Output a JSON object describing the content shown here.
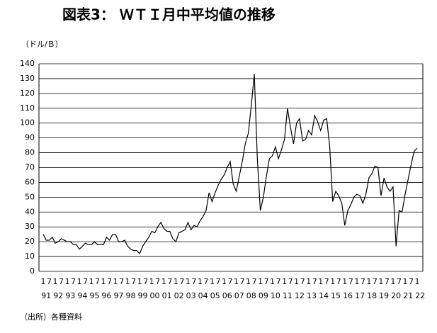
{
  "chart_data": {
    "type": "line",
    "title": "図表3： ＷＴＩ月中平均値の推移",
    "y_label": "（ドル/Ｂ）",
    "source": "（出所）各種資料",
    "x": [
      "91/1",
      "91/4",
      "91/7",
      "91/10",
      "92/1",
      "92/4",
      "92/7",
      "92/10",
      "93/1",
      "93/4",
      "93/7",
      "93/10",
      "94/1",
      "94/4",
      "94/7",
      "94/10",
      "95/1",
      "95/4",
      "95/7",
      "95/10",
      "96/1",
      "96/4",
      "96/7",
      "96/10",
      "97/1",
      "97/4",
      "97/7",
      "97/10",
      "98/1",
      "98/4",
      "98/7",
      "98/10",
      "99/1",
      "99/4",
      "99/7",
      "99/10",
      "00/1",
      "00/4",
      "00/7",
      "00/10",
      "01/1",
      "01/4",
      "01/7",
      "01/10",
      "02/1",
      "02/4",
      "02/7",
      "02/10",
      "03/1",
      "03/4",
      "03/7",
      "03/10",
      "04/1",
      "04/4",
      "04/7",
      "04/10",
      "05/1",
      "05/4",
      "05/7",
      "05/10",
      "06/1",
      "06/4",
      "06/7",
      "06/10",
      "07/1",
      "07/4",
      "07/7",
      "07/10",
      "08/1",
      "08/4",
      "08/7",
      "08/10",
      "09/1",
      "09/4",
      "09/7",
      "09/10",
      "10/1",
      "10/4",
      "10/7",
      "10/10",
      "11/1",
      "11/4",
      "11/7",
      "11/10",
      "12/1",
      "12/4",
      "12/7",
      "12/10",
      "13/1",
      "13/4",
      "13/7",
      "13/10",
      "14/1",
      "14/4",
      "14/7",
      "14/10",
      "15/1",
      "15/4",
      "15/7",
      "15/10",
      "16/1",
      "16/4",
      "16/7",
      "16/10",
      "17/1",
      "17/4",
      "17/7",
      "17/10",
      "18/1",
      "18/4",
      "18/7",
      "18/10",
      "19/1",
      "19/4",
      "19/7",
      "19/10",
      "20/1",
      "20/4",
      "20/7",
      "20/10",
      "21/1",
      "21/4",
      "21/7",
      "21/10",
      "22/1"
    ],
    "series": [
      {
        "color": "#000000",
        "values": [
          25,
          21,
          21,
          23,
          19,
          20,
          22,
          21,
          20,
          20,
          18,
          18,
          15,
          17,
          19,
          18,
          18,
          20,
          18,
          18,
          18,
          23,
          21,
          25,
          25,
          20,
          20,
          21,
          17,
          15,
          14,
          14,
          12,
          17,
          20,
          23,
          27,
          26,
          30,
          33,
          29,
          27,
          27,
          22,
          20,
          26,
          27,
          28,
          33,
          28,
          31,
          30,
          34,
          37,
          41,
          53,
          47,
          53,
          58,
          62,
          65,
          70,
          74,
          59,
          54,
          64,
          74,
          86,
          93,
          112,
          133,
          76,
          41,
          50,
          64,
          76,
          78,
          84,
          76,
          82,
          89,
          110,
          97,
          86,
          100,
          103,
          88,
          89,
          95,
          92,
          105,
          101,
          95,
          102,
          103,
          84,
          47,
          54,
          51,
          46,
          31,
          41,
          45,
          50,
          52,
          51,
          46,
          52,
          63,
          66,
          71,
          70,
          51,
          63,
          57,
          54,
          57,
          17,
          41,
          40,
          52,
          62,
          72,
          81,
          83
        ]
      }
    ],
    "ylim": [
      0,
      140
    ],
    "yticks": [
      0,
      10,
      20,
      30,
      40,
      50,
      60,
      70,
      80,
      90,
      100,
      110,
      120,
      130,
      140
    ],
    "xticks": [
      {
        "value": "91/1",
        "label": "1"
      },
      {
        "value": "91/7",
        "label": "7"
      },
      {
        "value": "92/1",
        "label": "1"
      },
      {
        "value": "92/7",
        "label": "7"
      },
      {
        "value": "93/1",
        "label": "1"
      },
      {
        "value": "93/7",
        "label": "7"
      },
      {
        "value": "94/1",
        "label": "1"
      },
      {
        "value": "94/7",
        "label": "7"
      },
      {
        "value": "95/1",
        "label": "1"
      },
      {
        "value": "95/7",
        "label": "7"
      },
      {
        "value": "96/1",
        "label": "1"
      },
      {
        "value": "96/7",
        "label": "7"
      },
      {
        "value": "97/1",
        "label": "1"
      },
      {
        "value": "97/7",
        "label": "7"
      },
      {
        "value": "98/1",
        "label": "1"
      },
      {
        "value": "98/7",
        "label": "7"
      },
      {
        "value": "99/1",
        "label": "1"
      },
      {
        "value": "99/7",
        "label": "7"
      },
      {
        "value": "00/1",
        "label": "1"
      },
      {
        "value": "00/7",
        "label": "7"
      },
      {
        "value": "01/1",
        "label": "1"
      },
      {
        "value": "01/7",
        "label": "7"
      },
      {
        "value": "02/1",
        "label": "1"
      },
      {
        "value": "02/7",
        "label": "7"
      },
      {
        "value": "03/1",
        "label": "1"
      },
      {
        "value": "03/7",
        "label": "7"
      },
      {
        "value": "04/1",
        "label": "1"
      },
      {
        "value": "04/7",
        "label": "7"
      },
      {
        "value": "05/1",
        "label": "1"
      },
      {
        "value": "05/7",
        "label": "7"
      },
      {
        "value": "06/1",
        "label": "1"
      },
      {
        "value": "06/7",
        "label": "7"
      },
      {
        "value": "07/1",
        "label": "1"
      },
      {
        "value": "07/7",
        "label": "7"
      },
      {
        "value": "08/1",
        "label": "1"
      },
      {
        "value": "08/7",
        "label": "7"
      },
      {
        "value": "09/1",
        "label": "1"
      },
      {
        "value": "09/7",
        "label": "7"
      },
      {
        "value": "10/1",
        "label": "1"
      },
      {
        "value": "10/7",
        "label": "7"
      },
      {
        "value": "11/1",
        "label": "1"
      },
      {
        "value": "11/7",
        "label": "7"
      },
      {
        "value": "12/1",
        "label": "1"
      },
      {
        "value": "12/7",
        "label": "7"
      },
      {
        "value": "13/1",
        "label": "1"
      },
      {
        "value": "13/7",
        "label": "7"
      },
      {
        "value": "14/1",
        "label": "1"
      },
      {
        "value": "14/7",
        "label": "7"
      },
      {
        "value": "15/1",
        "label": "1"
      },
      {
        "value": "15/7",
        "label": "7"
      },
      {
        "value": "16/1",
        "label": "1"
      },
      {
        "value": "16/7",
        "label": "7"
      },
      {
        "value": "17/1",
        "label": "1"
      },
      {
        "value": "17/7",
        "label": "7"
      },
      {
        "value": "18/1",
        "label": "1"
      },
      {
        "value": "18/7",
        "label": "7"
      },
      {
        "value": "19/1",
        "label": "1"
      },
      {
        "value": "19/7",
        "label": "7"
      },
      {
        "value": "20/1",
        "label": "1"
      },
      {
        "value": "20/7",
        "label": "7"
      },
      {
        "value": "21/1",
        "label": "1"
      },
      {
        "value": "21/7",
        "label": "7"
      },
      {
        "value": "22/1",
        "label": "1"
      }
    ],
    "year_labels": [
      {
        "value": "91/1",
        "label": "91"
      },
      {
        "value": "92/1",
        "label": "92"
      },
      {
        "value": "93/1",
        "label": "93"
      },
      {
        "value": "94/1",
        "label": "94"
      },
      {
        "value": "95/1",
        "label": "95"
      },
      {
        "value": "96/1",
        "label": "96"
      },
      {
        "value": "97/1",
        "label": "97"
      },
      {
        "value": "98/1",
        "label": "98"
      },
      {
        "value": "99/1",
        "label": "99"
      },
      {
        "value": "00/1",
        "label": "00"
      },
      {
        "value": "01/1",
        "label": "01"
      },
      {
        "value": "02/1",
        "label": "02"
      },
      {
        "value": "03/1",
        "label": "03"
      },
      {
        "value": "04/1",
        "label": "04"
      },
      {
        "value": "05/1",
        "label": "05"
      },
      {
        "value": "06/1",
        "label": "06"
      },
      {
        "value": "07/1",
        "label": "07"
      },
      {
        "value": "08/1",
        "label": "08"
      },
      {
        "value": "09/1",
        "label": "09"
      },
      {
        "value": "10/1",
        "label": "10"
      },
      {
        "value": "11/1",
        "label": "11"
      },
      {
        "value": "12/1",
        "label": "12"
      },
      {
        "value": "13/1",
        "label": "13"
      },
      {
        "value": "14/1",
        "label": "14"
      },
      {
        "value": "15/1",
        "label": "15"
      },
      {
        "value": "16/1",
        "label": "16"
      },
      {
        "value": "17/1",
        "label": "17"
      },
      {
        "value": "18/1",
        "label": "18"
      },
      {
        "value": "19/1",
        "label": "19"
      },
      {
        "value": "20/1",
        "label": "20"
      },
      {
        "value": "21/1",
        "label": "21"
      },
      {
        "value": "22/1",
        "label": "22"
      }
    ],
    "grid": true
  }
}
